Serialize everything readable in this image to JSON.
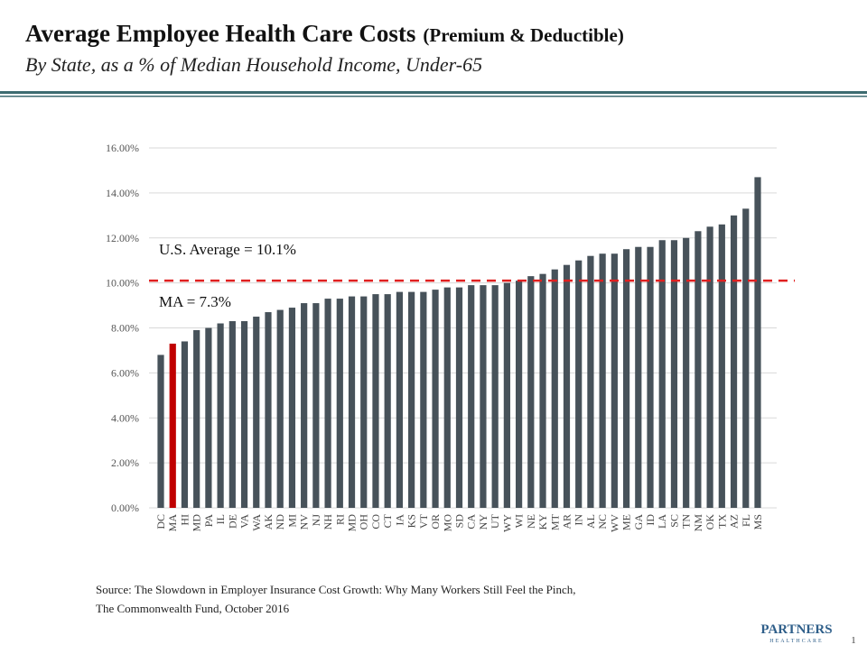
{
  "chart_data": {
    "type": "bar",
    "title": "Average Employee Health Care Costs",
    "title_note": "(Premium & Deductible)",
    "subtitle": "By State, as a % of Median Household Income, Under-65",
    "categories": [
      "DC",
      "MA",
      "HI",
      "MD",
      "PA",
      "IL",
      "DE",
      "VA",
      "WA",
      "AK",
      "ND",
      "MI",
      "NV",
      "NJ",
      "NH",
      "RI",
      "MD",
      "OH",
      "CO",
      "CT",
      "IA",
      "KS",
      "VT",
      "OR",
      "MO",
      "SD",
      "CA",
      "NY",
      "UT",
      "WY",
      "WI",
      "NE",
      "KY",
      "MT",
      "AR",
      "IN",
      "AL",
      "NC",
      "WV",
      "ME",
      "GA",
      "ID",
      "LA",
      "SC",
      "TN",
      "NM",
      "OK",
      "TX",
      "AZ",
      "FL",
      "MS"
    ],
    "values": [
      6.8,
      7.3,
      7.4,
      7.9,
      8.0,
      8.2,
      8.3,
      8.3,
      8.5,
      8.7,
      8.8,
      8.9,
      9.1,
      9.1,
      9.3,
      9.3,
      9.4,
      9.4,
      9.5,
      9.5,
      9.6,
      9.6,
      9.6,
      9.7,
      9.8,
      9.8,
      9.9,
      9.9,
      9.9,
      10.0,
      10.1,
      10.3,
      10.4,
      10.6,
      10.8,
      11.0,
      11.2,
      11.3,
      11.3,
      11.5,
      11.6,
      11.6,
      11.9,
      11.9,
      12.0,
      12.3,
      12.5,
      12.6,
      13.0,
      13.3,
      14.7
    ],
    "color": "#47525a",
    "highlight": {
      "category": "MA",
      "color": "#c00000"
    },
    "ylim": [
      0,
      16
    ],
    "yticks": [
      {
        "value": 0,
        "label": "0.00%"
      },
      {
        "value": 2,
        "label": "2.00%"
      },
      {
        "value": 4,
        "label": "4.00%"
      },
      {
        "value": 6,
        "label": "6.00%"
      },
      {
        "value": 8,
        "label": "8.00%"
      },
      {
        "value": 10,
        "label": "10.00%"
      },
      {
        "value": 12,
        "label": "12.00%"
      },
      {
        "value": 14,
        "label": "14.00%"
      },
      {
        "value": 16,
        "label": "16.00%"
      }
    ],
    "grid": true,
    "reference_line": {
      "value": 10.1,
      "color": "#e02020",
      "label": "U.S. Average = 10.1%"
    },
    "annotation": "MA = 7.3%",
    "source": [
      "Source:  The Slowdown in Employer Insurance Cost Growth: Why Many Workers Still Feel the Pinch,",
      "The Commonwealth Fund, October 2016"
    ],
    "logo": [
      "PARTNERS",
      "HEALTHCARE"
    ],
    "page_number": "1"
  }
}
